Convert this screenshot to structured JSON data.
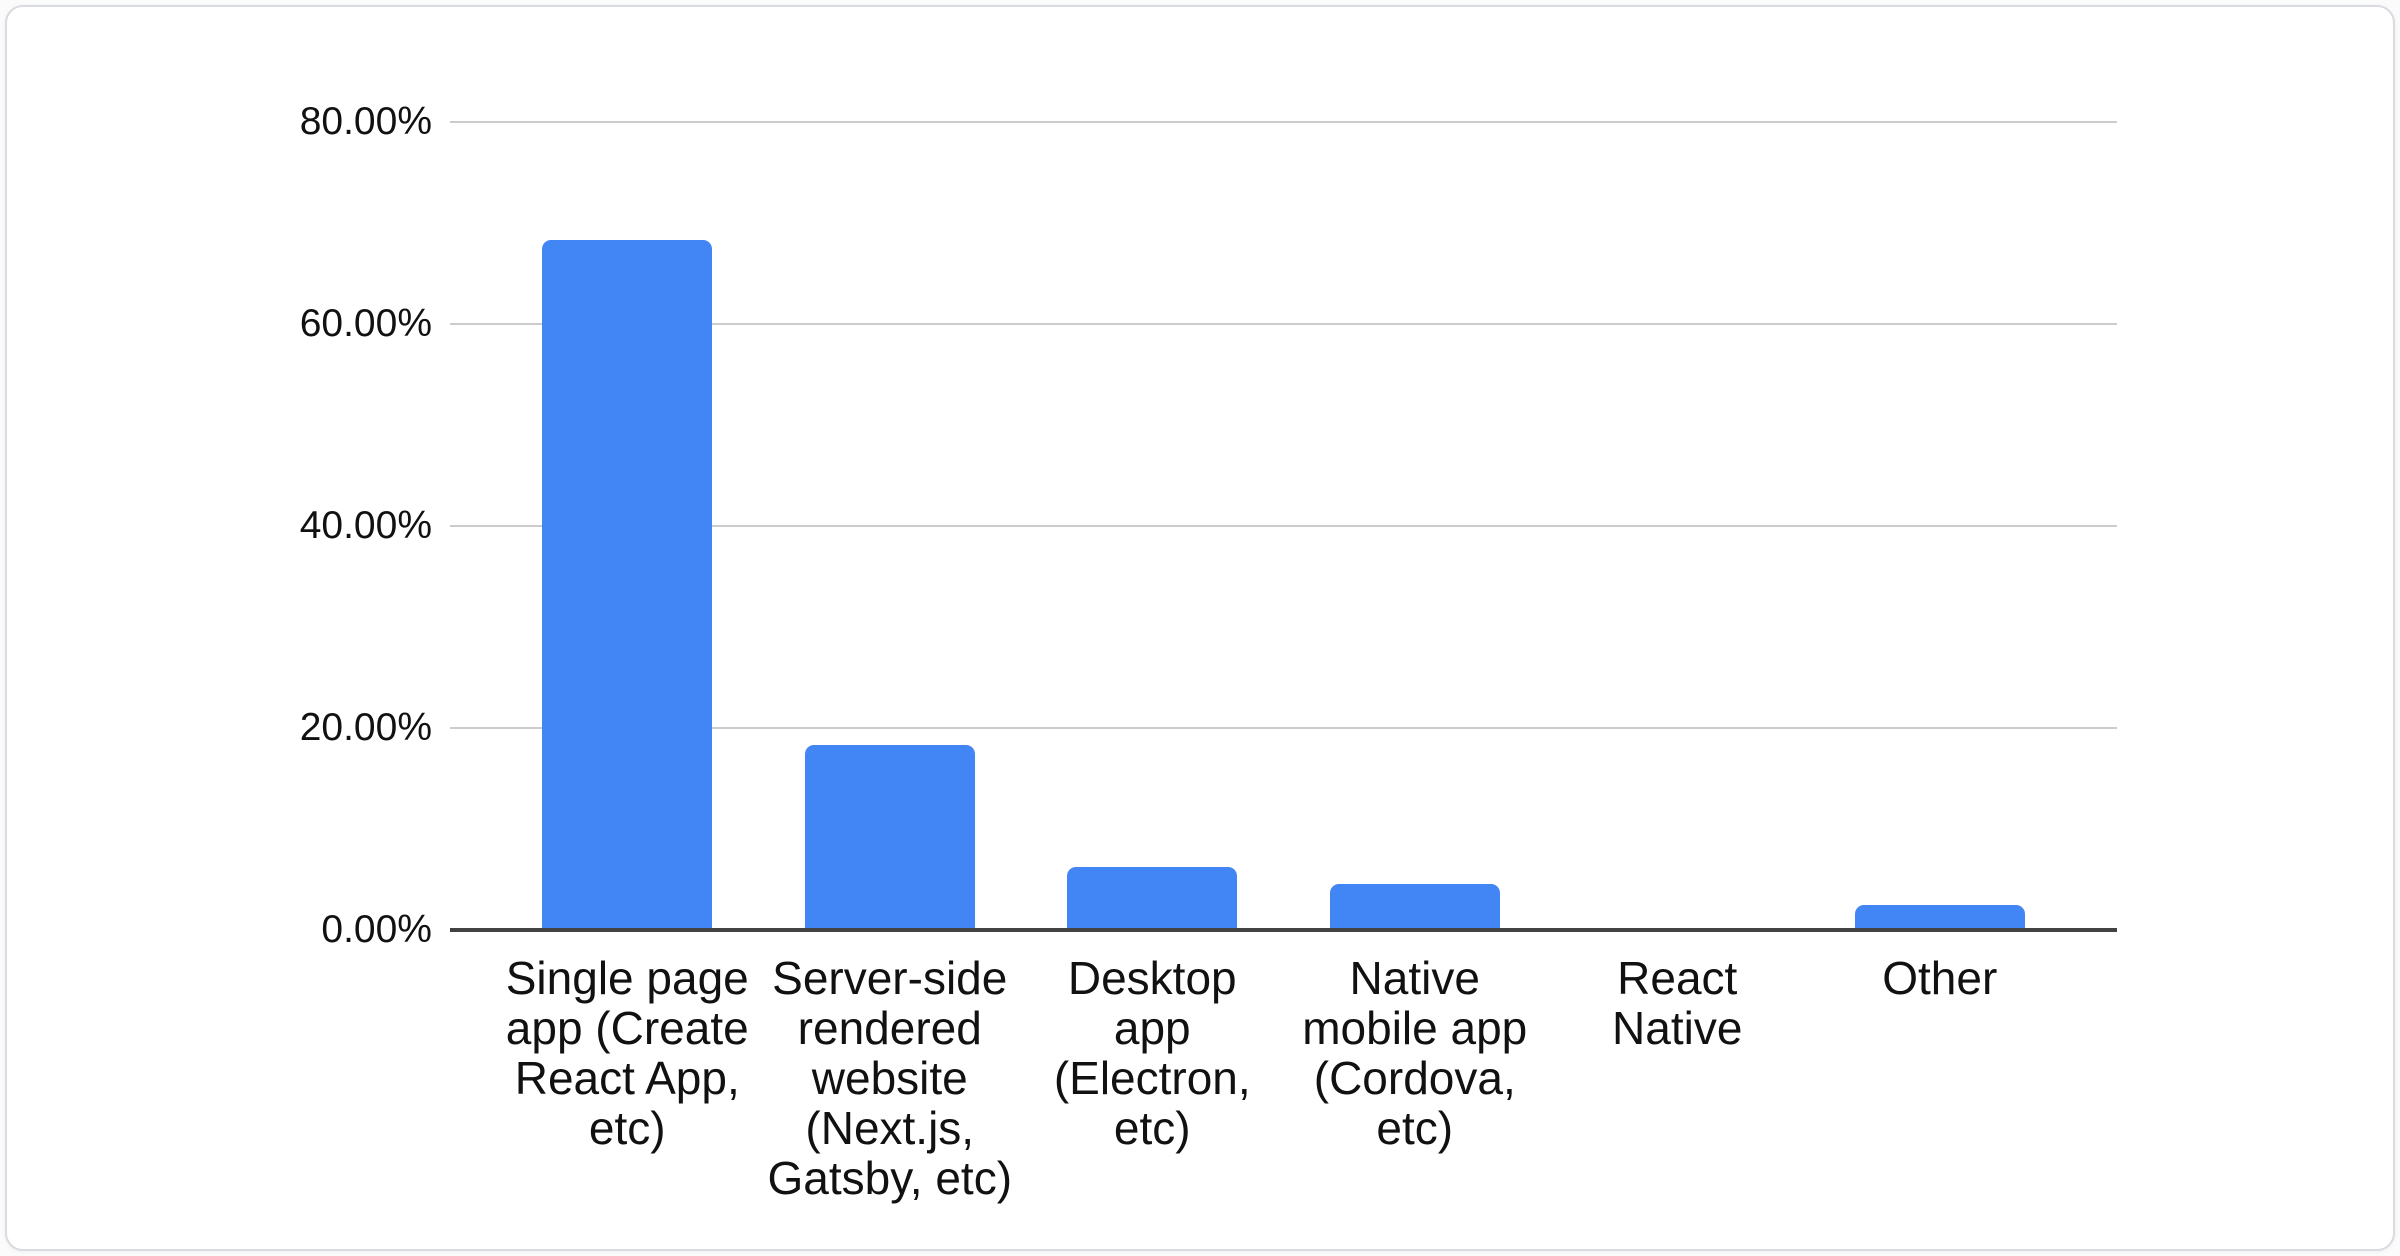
{
  "chart_data": {
    "type": "bar",
    "title": "",
    "xlabel": "",
    "ylabel": "",
    "categories": [
      "Single page app (Create React App, etc)",
      "Server-side rendered website (Next.js, Gatsby, etc)",
      "Desktop app (Electron, etc)",
      "Native mobile app (Cordova, etc)",
      "React Native",
      "Other"
    ],
    "values": [
      68.3,
      18.3,
      6.2,
      4.6,
      0,
      2.5
    ],
    "value_unit": "%",
    "ylim": [
      0,
      80
    ],
    "ytick_values": [
      80,
      60,
      40,
      20,
      0
    ],
    "ytick_labels": [
      "80.00%",
      "60.00%",
      "40.00%",
      "20.00%",
      "0.00%"
    ],
    "grid": true,
    "legend": "none",
    "colors": {
      "bar": "#4285f4",
      "gridline": "#cccccc",
      "axis_line": "#424242",
      "text": "#111111",
      "card_border": "#d8dbdf",
      "card_background": "#ffffff"
    }
  }
}
